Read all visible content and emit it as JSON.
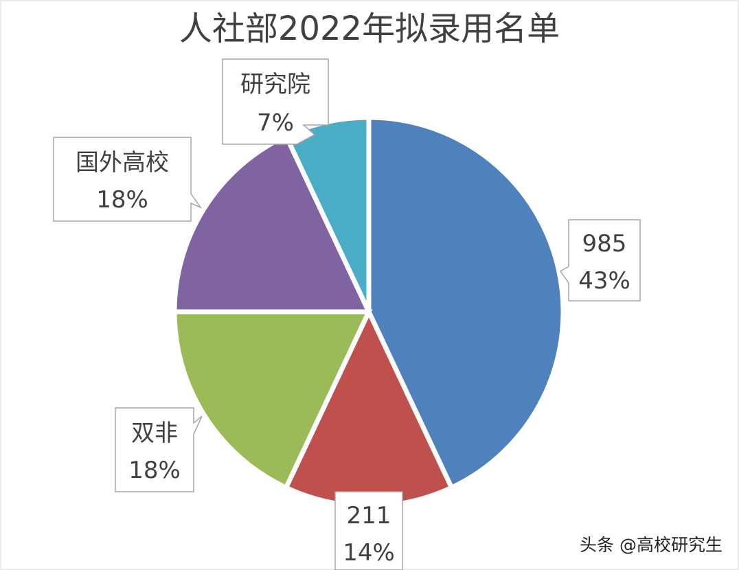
{
  "chart_data": {
    "type": "pie",
    "title": "人社部2022年拟录用名单",
    "categories": [
      "985",
      "211",
      "双非",
      "国外高校",
      "研究院"
    ],
    "values": [
      43,
      14,
      18,
      18,
      7
    ],
    "value_labels": [
      "43%",
      "14%",
      "18%",
      "18%",
      "7%"
    ],
    "colors": [
      "#4F81BD",
      "#C0504D",
      "#9BBB59",
      "#8064A2",
      "#4BACC6"
    ],
    "legend": "none",
    "grid": false
  },
  "watermark": "头条 @高校研究生"
}
